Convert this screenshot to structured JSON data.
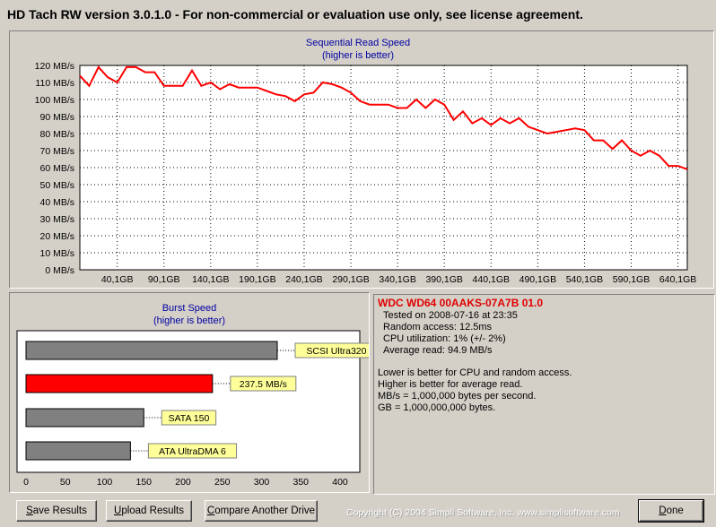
{
  "window": {
    "title": "HD Tach RW version 3.0.1.0  - For non-commercial or evaluation use only, see license agreement."
  },
  "sequential": {
    "title": "Sequential Read Speed",
    "subtitle": "(higher is better)",
    "y_ticks": [
      "0 MB/s",
      "10 MB/s",
      "20 MB/s",
      "30 MB/s",
      "40 MB/s",
      "50 MB/s",
      "60 MB/s",
      "70 MB/s",
      "80 MB/s",
      "90 MB/s",
      "100 MB/s",
      "110 MB/s",
      "120 MB/s"
    ],
    "x_ticks": [
      "40,1GB",
      "90,1GB",
      "140,1GB",
      "190,1GB",
      "240,1GB",
      "290,1GB",
      "340,1GB",
      "390,1GB",
      "440,1GB",
      "490,1GB",
      "540,1GB",
      "590,1GB",
      "640,1GB"
    ],
    "line_color": "#ff0000"
  },
  "burst": {
    "title": "Burst Speed",
    "subtitle": "(higher is better)",
    "x_ticks": [
      "0",
      "50",
      "100",
      "150",
      "200",
      "250",
      "300",
      "350",
      "400"
    ]
  },
  "chart_data": [
    {
      "type": "line",
      "title": "Sequential Read Speed",
      "subtitle": "(higher is better)",
      "xlabel": "",
      "ylabel": "",
      "ylim": [
        0,
        120
      ],
      "xlim": [
        0,
        650
      ],
      "grid": true,
      "series": [
        {
          "color": "#ff0000",
          "x": [
            0,
            10,
            20,
            30,
            40,
            50,
            60,
            70,
            80,
            90,
            100,
            110,
            120,
            130,
            140,
            150,
            160,
            170,
            180,
            190,
            200,
            210,
            220,
            230,
            240,
            250,
            260,
            270,
            280,
            290,
            300,
            310,
            320,
            330,
            340,
            350,
            360,
            370,
            380,
            390,
            400,
            410,
            420,
            430,
            440,
            450,
            460,
            470,
            480,
            490,
            500,
            510,
            520,
            530,
            540,
            550,
            560,
            570,
            580,
            590,
            600,
            610,
            620,
            630,
            640,
            650
          ],
          "y": [
            114,
            108,
            119,
            113,
            110,
            119,
            119,
            116,
            116,
            108,
            108,
            108,
            117,
            108,
            110,
            106,
            109,
            107,
            107,
            107,
            105,
            103,
            102,
            99,
            103,
            104,
            110,
            109,
            107,
            104,
            99,
            97,
            97,
            97,
            95,
            95,
            100,
            95,
            100,
            97,
            88,
            93,
            86,
            89,
            85,
            89,
            86,
            89,
            84,
            82,
            80,
            81,
            82,
            83,
            82,
            76,
            76,
            71,
            76,
            70,
            67,
            70,
            67,
            61,
            61,
            59
          ]
        }
      ]
    },
    {
      "type": "bar",
      "title": "Burst Speed",
      "subtitle": "(higher is better)",
      "orientation": "horizontal",
      "xlim": [
        0,
        400
      ],
      "grid": false,
      "categories": [
        "SCSI Ultra320",
        "237.5 MB/s",
        "SATA 150",
        "ATA UltraDMA 6"
      ],
      "values": [
        320,
        237.5,
        150,
        133
      ],
      "colors": [
        "#808080",
        "#ff0000",
        "#808080",
        "#808080"
      ]
    }
  ],
  "info": {
    "drive": "WDC WD64 00AAKS-07A7B 01.0",
    "tested": "Tested on 2008-07-16 at 23:35",
    "random_access": "Random access: 12.5ms",
    "cpu": "CPU utilization: 1% (+/- 2%)",
    "avg_read": "Average read: 94.9 MB/s",
    "note1": "Lower is better for CPU and random access.",
    "note2": "Higher is better for average read.",
    "note3": "MB/s = 1,000,000 bytes per second.",
    "note4": "GB = 1,000,000,000 bytes."
  },
  "buttons": {
    "save": {
      "u": "S",
      "rest": "ave Results"
    },
    "upload": {
      "u": "U",
      "rest": "pload Results"
    },
    "compare": {
      "u": "C",
      "rest": "ompare Another Drive"
    },
    "done": {
      "u": "D",
      "rest": "one"
    }
  },
  "footer": {
    "copyright": "Copyright (C) 2004 Simpli Software, Inc. www.simplisoftware.com"
  }
}
